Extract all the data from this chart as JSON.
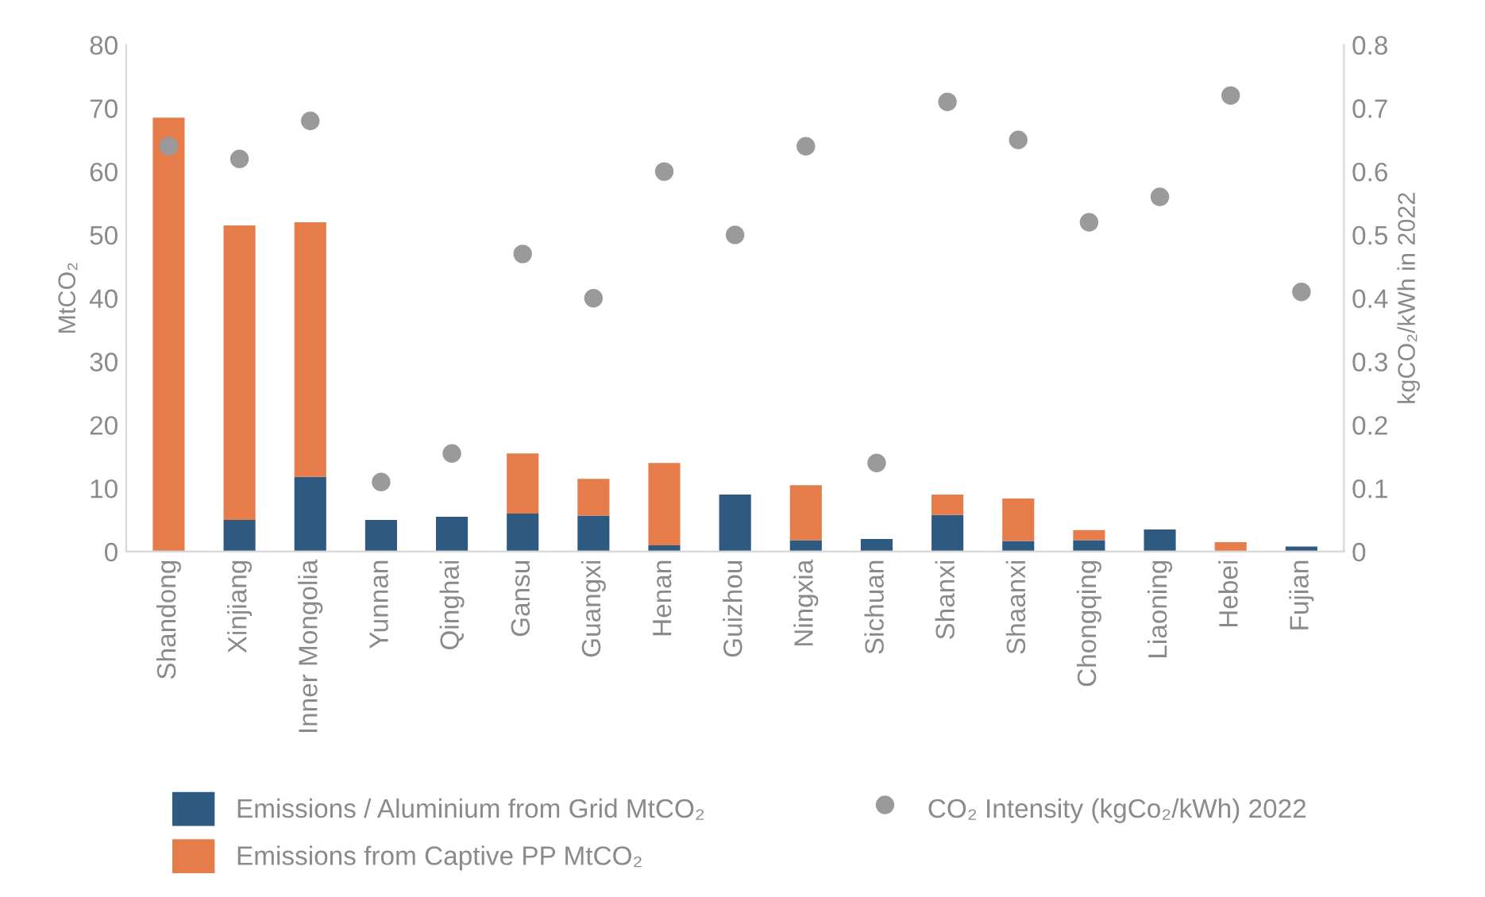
{
  "chart_data": {
    "type": "bar",
    "stacked": true,
    "categories": [
      "Shandong",
      "Xinjiang",
      "Inner Mongolia",
      "Yunnan",
      "Qinghai",
      "Gansu",
      "Guangxi",
      "Henan",
      "Guizhou",
      "Ningxia",
      "Sichuan",
      "Shanxi",
      "Shaanxi",
      "Chongqing",
      "Liaoning",
      "Hebei",
      "Fujian"
    ],
    "series": [
      {
        "name": "Emissions / Aluminium from Grid MtCO₂",
        "color": "#2e5a82",
        "values": [
          0,
          5,
          11.8,
          5,
          5.5,
          6,
          5.7,
          1,
          9,
          1.8,
          2,
          5.8,
          1.7,
          1.8,
          3.5,
          0,
          0.8
        ]
      },
      {
        "name": "Emissions from Captive PP MtCO₂",
        "color": "#e57c4a",
        "values": [
          68.5,
          46.5,
          40.2,
          0,
          0,
          9.5,
          5.8,
          13,
          0,
          8.7,
          0,
          3.2,
          6.7,
          1.6,
          0,
          1.5,
          0
        ]
      },
      {
        "name": "CO₂ Intensity (kgCo₂/kWh) 2022",
        "type": "scatter",
        "axis": "y2",
        "marker": "circle",
        "color": "#9a9a9a",
        "values": [
          0.64,
          0.62,
          0.68,
          0.11,
          0.155,
          0.47,
          0.4,
          0.6,
          0.5,
          0.64,
          0.14,
          0.71,
          0.65,
          0.52,
          0.56,
          0.72,
          0.41
        ]
      }
    ],
    "ylabel": "MtCO₂",
    "y2label": "kgCO₂/kWh in 2022",
    "ylim": [
      0,
      80
    ],
    "yticks": [
      0,
      10,
      20,
      30,
      40,
      50,
      60,
      70,
      80
    ],
    "y2lim": [
      0,
      0.8
    ],
    "y2ticks": [
      {
        "value": 0,
        "label": "0"
      },
      0.1,
      0.2,
      0.3,
      0.4,
      0.5,
      0.6,
      0.7,
      0.8
    ],
    "grid": false,
    "legend": "bottom"
  }
}
